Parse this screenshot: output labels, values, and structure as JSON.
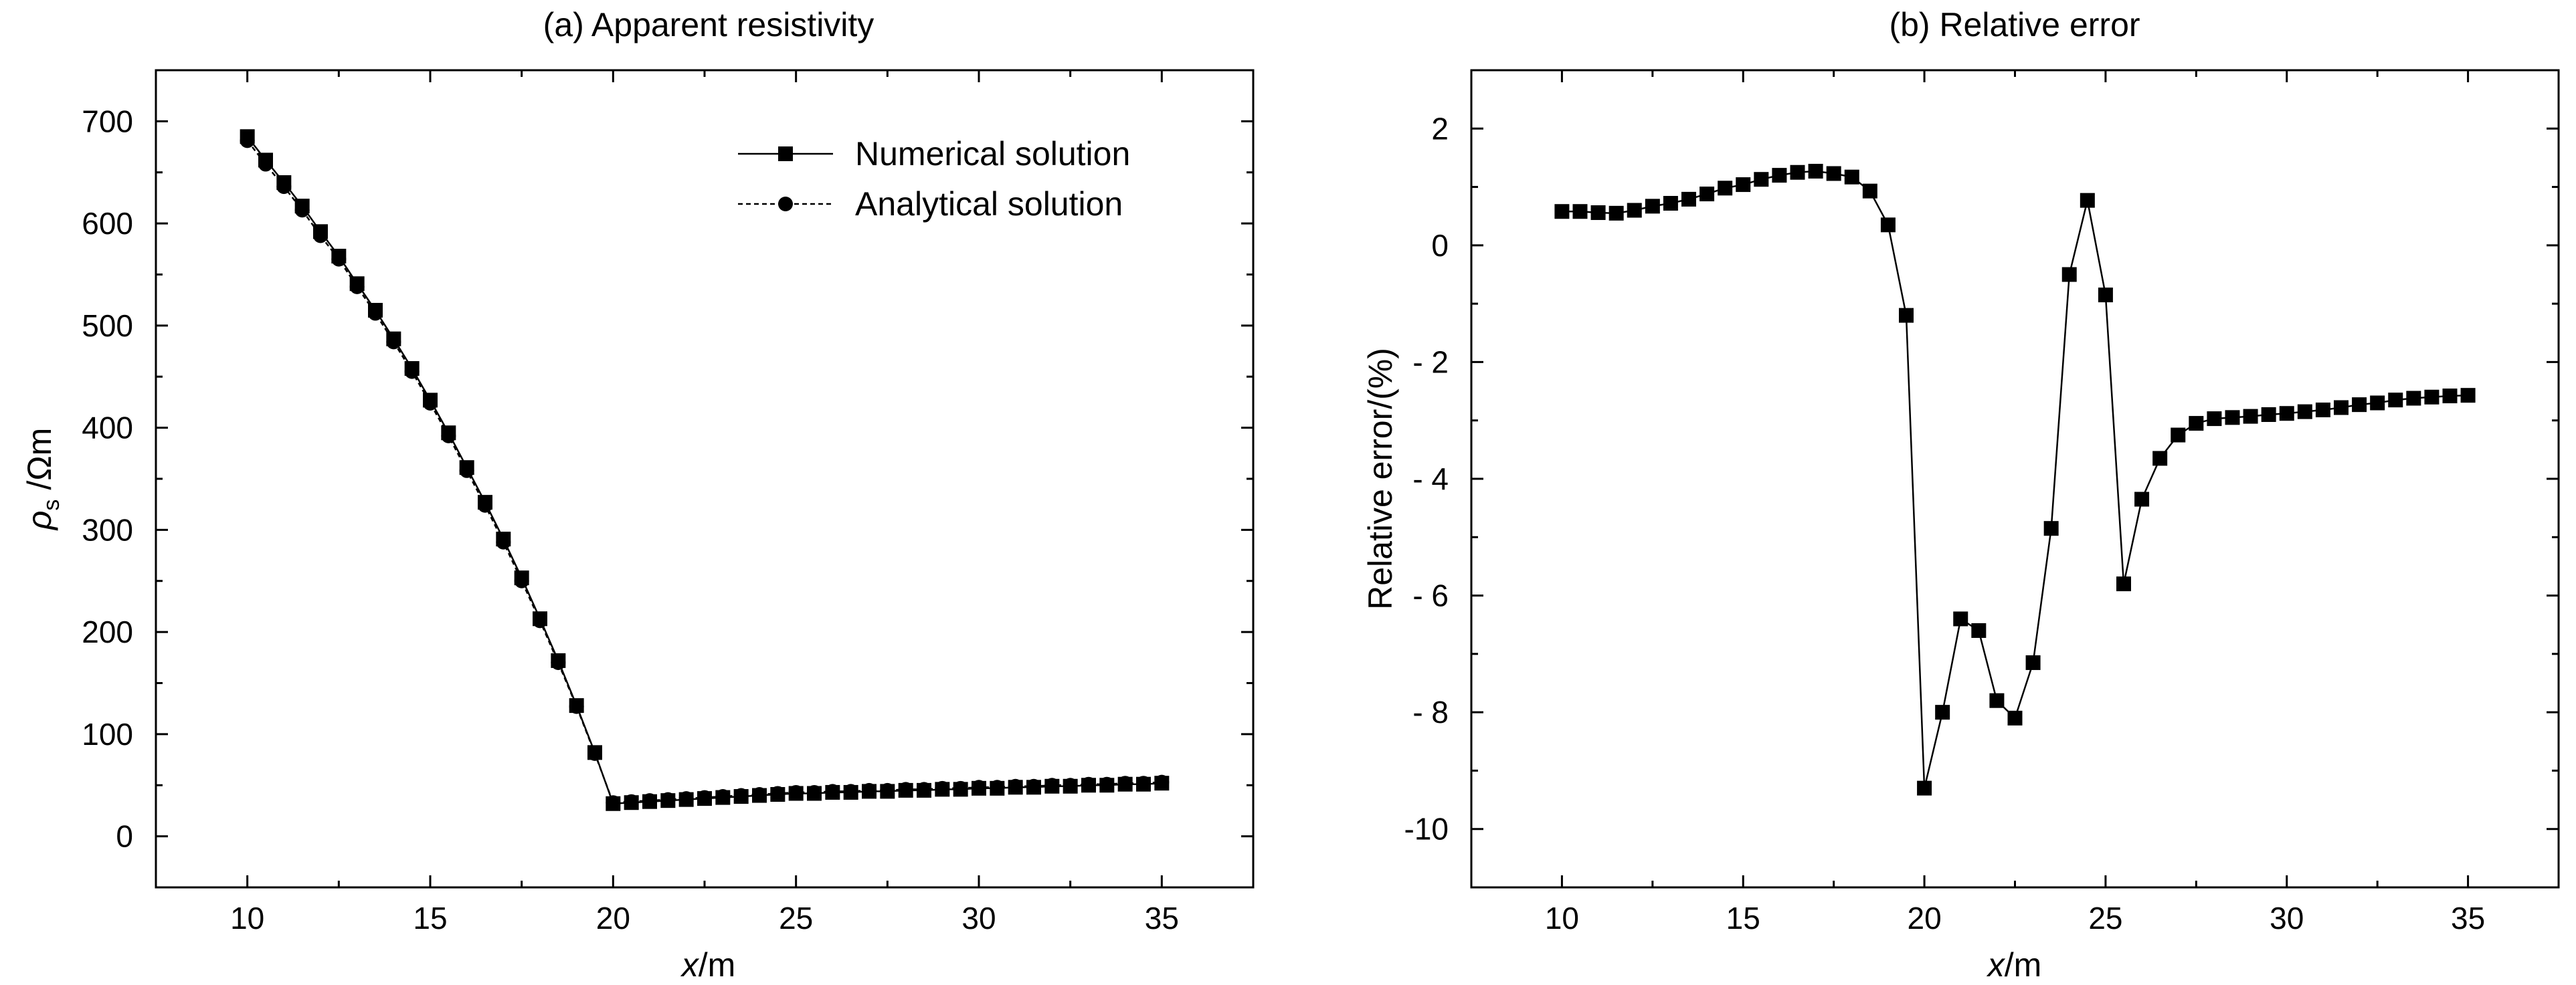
{
  "chart_data": [
    {
      "type": "line",
      "panel_title": "(a) Apparent resistivity",
      "xlabel_italic": "x",
      "xlabel_rest": "/m",
      "ylabel_symbol": "ρ",
      "ylabel_sub": "s",
      "ylabel_rest": " /Ωm",
      "xlim": [
        7.5,
        37.5
      ],
      "ylim": [
        -50,
        750
      ],
      "xticks": [
        10,
        15,
        20,
        25,
        30,
        35
      ],
      "yticks": [
        0,
        100,
        200,
        300,
        400,
        500,
        600,
        700
      ],
      "legend_position": "top-right",
      "series": [
        {
          "name": "Numerical solution",
          "marker": "square",
          "line": "solid",
          "x": [
            10,
            10.5,
            11,
            11.5,
            12,
            12.5,
            13,
            13.5,
            14,
            14.5,
            15,
            15.5,
            16,
            16.5,
            17,
            17.5,
            18,
            18.5,
            19,
            19.5,
            20,
            20.5,
            21,
            21.5,
            22,
            22.5,
            23,
            23.5,
            24,
            24.5,
            25,
            25.5,
            26,
            26.5,
            27,
            27.5,
            28,
            28.5,
            29,
            29.5,
            30,
            30.5,
            31,
            31.5,
            32,
            32.5,
            33,
            33.5,
            34,
            34.5,
            35
          ],
          "values": [
            685,
            662,
            640,
            617,
            592,
            568,
            541,
            515,
            487,
            458,
            427,
            395,
            361,
            327,
            291,
            253,
            213,
            172,
            128,
            82,
            32,
            33,
            34,
            35,
            36,
            37,
            38,
            39,
            40,
            41,
            42,
            42,
            43,
            43,
            44,
            44,
            45,
            45,
            46,
            46,
            47,
            47,
            48,
            48,
            49,
            49,
            50,
            50,
            51,
            51,
            52
          ]
        },
        {
          "name": "Analytical solution",
          "marker": "circle",
          "line": "dashed",
          "x": [
            10,
            10.5,
            11,
            11.5,
            12,
            12.5,
            13,
            13.5,
            14,
            14.5,
            15,
            15.5,
            16,
            16.5,
            17,
            17.5,
            18,
            18.5,
            19,
            19.5,
            20,
            20.5,
            21,
            21.5,
            22,
            22.5,
            23,
            23.5,
            24,
            24.5,
            25,
            25.5,
            26,
            26.5,
            27,
            27.5,
            28,
            28.5,
            29,
            29.5,
            30,
            30.5,
            31,
            31.5,
            32,
            32.5,
            33,
            33.5,
            34,
            34.5,
            35
          ],
          "values": [
            681,
            658,
            636,
            613,
            588,
            565,
            538,
            512,
            484,
            455,
            424,
            392,
            358,
            324,
            288,
            250,
            211,
            170,
            127,
            81,
            33,
            34,
            35,
            36,
            37,
            38,
            39,
            40,
            41,
            42,
            43,
            43,
            44,
            44,
            45,
            45,
            46,
            46,
            47,
            47,
            48,
            48,
            49,
            49,
            50,
            50,
            51,
            51,
            52,
            52,
            53
          ]
        }
      ]
    },
    {
      "type": "line",
      "panel_title": "(b) Relative error",
      "xlabel_italic": "x",
      "xlabel_rest": "/m",
      "ylabel": "Relative error/(%)",
      "xlim": [
        7.5,
        37.5
      ],
      "ylim": [
        -11,
        3
      ],
      "xticks": [
        10,
        15,
        20,
        25,
        30,
        35
      ],
      "yticks": [
        2,
        0,
        -2,
        -4,
        -6,
        -8,
        -10
      ],
      "ytick_labels": [
        "2",
        "0",
        "- 2",
        "- 4",
        "- 6",
        "- 8",
        "-10"
      ],
      "series": [
        {
          "marker": "square",
          "line": "solid",
          "x": [
            10,
            10.5,
            11,
            11.5,
            12,
            12.5,
            13,
            13.5,
            14,
            14.5,
            15,
            15.5,
            16,
            16.5,
            17,
            17.5,
            18,
            18.5,
            19,
            19.5,
            20,
            20.5,
            21,
            21.5,
            22,
            22.5,
            23,
            23.5,
            24,
            24.5,
            25,
            25.5,
            26,
            26.5,
            27,
            27.5,
            28,
            28.5,
            29,
            29.5,
            30,
            30.5,
            31,
            31.5,
            32,
            32.5,
            33,
            33.5,
            34,
            34.5,
            35
          ],
          "values": [
            0.58,
            0.58,
            0.56,
            0.55,
            0.6,
            0.67,
            0.72,
            0.79,
            0.88,
            0.98,
            1.04,
            1.13,
            1.2,
            1.25,
            1.27,
            1.23,
            1.17,
            0.93,
            0.35,
            -1.2,
            -9.3,
            -8.0,
            -6.4,
            -6.6,
            -7.8,
            -8.1,
            -7.15,
            -4.85,
            -0.5,
            0.77,
            -0.85,
            -5.8,
            -4.35,
            -3.65,
            -3.25,
            -3.05,
            -2.97,
            -2.95,
            -2.93,
            -2.9,
            -2.88,
            -2.85,
            -2.82,
            -2.78,
            -2.73,
            -2.7,
            -2.65,
            -2.62,
            -2.6,
            -2.58,
            -2.57
          ]
        }
      ]
    }
  ]
}
